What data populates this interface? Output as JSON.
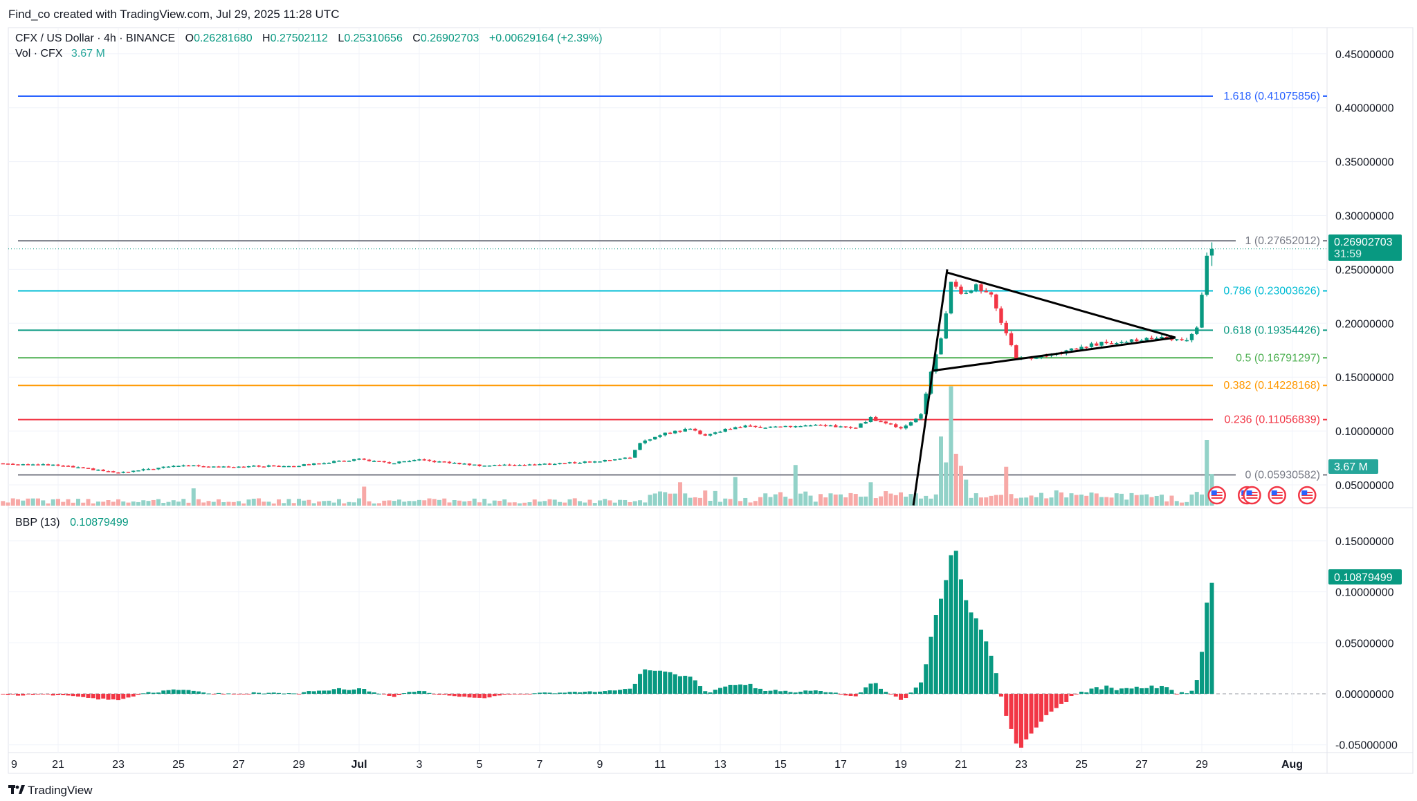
{
  "header": {
    "attribution": "Find_co created with TradingView.com, Jul 29, 2025 11:28 UTC"
  },
  "legend": {
    "symbol": "CFX / US Dollar · 4h · BINANCE",
    "o_label": "O",
    "o": "0.26281680",
    "h_label": "H",
    "h": "0.27502112",
    "l_label": "L",
    "l": "0.25310656",
    "c_label": "C",
    "c": "0.26902703",
    "change": "+0.00629164 (+2.39%)",
    "vol_label": "Vol · CFX",
    "vol": "3.67 M"
  },
  "indicator": {
    "label": "BBP (13)",
    "value": "0.10879499"
  },
  "price_badge": {
    "price": "0.26902703",
    "countdown": "31:59"
  },
  "volume_badge": "3.67 M",
  "bbp_badge": "0.10879499",
  "logo_text": "TradingView",
  "colors": {
    "up": "#089981",
    "down": "#f23645",
    "up_volume": "#92d2c8",
    "down_volume": "#f7a9a7",
    "grid": "#f0f3fa",
    "text": "#131722"
  },
  "icons": {
    "event": "us-flag-icon",
    "logo": "tradingview-logo-icon"
  },
  "chart_data": {
    "type": "candlestick",
    "symbol": "CFX/USD",
    "interval": "4h",
    "price_axis": {
      "ticks": [
        "0.45000000",
        "0.40000000",
        "0.35000000",
        "0.30000000",
        "0.25000000",
        "0.20000000",
        "0.15000000",
        "0.10000000",
        "0.05000000"
      ],
      "range": [
        0.03,
        0.47
      ]
    },
    "bbp_axis": {
      "ticks": [
        "0.15000000",
        "0.10000000",
        "0.05000000",
        "0.00000000",
        "-0.05000000"
      ],
      "range": [
        -0.065,
        0.175
      ]
    },
    "time_axis": [
      {
        "label": "9",
        "date": "2025-06-19"
      },
      {
        "label": "21",
        "date": "2025-06-21"
      },
      {
        "label": "23",
        "date": "2025-06-23"
      },
      {
        "label": "25",
        "date": "2025-06-25"
      },
      {
        "label": "27",
        "date": "2025-06-27"
      },
      {
        "label": "29",
        "date": "2025-06-29"
      },
      {
        "label": "Jul",
        "date": "2025-07-01",
        "bold": true
      },
      {
        "label": "3",
        "date": "2025-07-03"
      },
      {
        "label": "5",
        "date": "2025-07-05"
      },
      {
        "label": "7",
        "date": "2025-07-07"
      },
      {
        "label": "9",
        "date": "2025-07-09"
      },
      {
        "label": "11",
        "date": "2025-07-11"
      },
      {
        "label": "13",
        "date": "2025-07-13"
      },
      {
        "label": "15",
        "date": "2025-07-15"
      },
      {
        "label": "17",
        "date": "2025-07-17"
      },
      {
        "label": "19",
        "date": "2025-07-19"
      },
      {
        "label": "21",
        "date": "2025-07-21"
      },
      {
        "label": "23",
        "date": "2025-07-23"
      },
      {
        "label": "25",
        "date": "2025-07-25"
      },
      {
        "label": "27",
        "date": "2025-07-27"
      },
      {
        "label": "29",
        "date": "2025-07-29"
      },
      {
        "label": "Aug",
        "date": "2025-08-01",
        "bold": true
      }
    ],
    "close_path": [
      [
        "2025-06-19T00:00",
        0.07
      ],
      [
        "2025-06-21T00:00",
        0.068
      ],
      [
        "2025-06-22T12:00",
        0.063
      ],
      [
        "2025-06-23T00:00",
        0.061
      ],
      [
        "2025-06-25T00:00",
        0.068
      ],
      [
        "2025-06-27T00:00",
        0.067
      ],
      [
        "2025-06-29T00:00",
        0.068
      ],
      [
        "2025-07-01T00:00",
        0.074
      ],
      [
        "2025-07-02T00:00",
        0.07
      ],
      [
        "2025-07-03T00:00",
        0.073
      ],
      [
        "2025-07-05T00:00",
        0.068
      ],
      [
        "2025-07-07T00:00",
        0.069
      ],
      [
        "2025-07-09T00:00",
        0.072
      ],
      [
        "2025-07-10T00:00",
        0.076
      ],
      [
        "2025-07-10T08:00",
        0.088
      ],
      [
        "2025-07-11T00:00",
        0.097
      ],
      [
        "2025-07-12T00:00",
        0.102
      ],
      [
        "2025-07-12T12:00",
        0.096
      ],
      [
        "2025-07-13T12:00",
        0.104
      ],
      [
        "2025-07-15T00:00",
        0.104
      ],
      [
        "2025-07-16T00:00",
        0.105
      ],
      [
        "2025-07-17T00:00",
        0.104
      ],
      [
        "2025-07-17T12:00",
        0.103
      ],
      [
        "2025-07-18T00:00",
        0.112
      ],
      [
        "2025-07-18T12:00",
        0.107
      ],
      [
        "2025-07-19T00:00",
        0.103
      ],
      [
        "2025-07-19T16:00",
        0.115
      ],
      [
        "2025-07-20T00:00",
        0.155
      ],
      [
        "2025-07-20T08:00",
        0.185
      ],
      [
        "2025-07-20T12:00",
        0.21
      ],
      [
        "2025-07-20T16:00",
        0.24
      ],
      [
        "2025-07-21T00:00",
        0.225
      ],
      [
        "2025-07-21T12:00",
        0.235
      ],
      [
        "2025-07-22T00:00",
        0.225
      ],
      [
        "2025-07-22T12:00",
        0.19
      ],
      [
        "2025-07-22T20:00",
        0.168
      ],
      [
        "2025-07-23T12:00",
        0.168
      ],
      [
        "2025-07-24T00:00",
        0.17
      ],
      [
        "2025-07-25T00:00",
        0.178
      ],
      [
        "2025-07-26T00:00",
        0.183
      ],
      [
        "2025-07-27T00:00",
        0.185
      ],
      [
        "2025-07-28T00:00",
        0.186
      ],
      [
        "2025-07-28T12:00",
        0.184
      ],
      [
        "2025-07-28T20:00",
        0.195
      ],
      [
        "2025-07-29T04:00",
        0.262
      ],
      [
        "2025-07-29T08:00",
        0.269
      ]
    ],
    "volume_spikes_m": [
      [
        "2025-06-25T12:00",
        2.0
      ],
      [
        "2025-07-01T04:00",
        2.2
      ],
      [
        "2025-07-11T16:00",
        2.7
      ],
      [
        "2025-07-13T12:00",
        3.3
      ],
      [
        "2025-07-15T12:00",
        4.7
      ],
      [
        "2025-07-18T00:00",
        2.7
      ],
      [
        "2025-07-20T08:00",
        8.0
      ],
      [
        "2025-07-20T12:00",
        5.0
      ],
      [
        "2025-07-20T16:00",
        13.8
      ],
      [
        "2025-07-20T20:00",
        6.0
      ],
      [
        "2025-07-21T00:00",
        4.6
      ],
      [
        "2025-07-21T04:00",
        3.0
      ],
      [
        "2025-07-22T12:00",
        4.5
      ],
      [
        "2025-07-29T04:00",
        7.6
      ],
      [
        "2025-07-29T08:00",
        3.67
      ]
    ],
    "fib_levels": [
      {
        "level": "1.618",
        "price": 0.41075856,
        "label": "1.618 (0.41075856)",
        "color": "#2962ff"
      },
      {
        "level": "1",
        "price": 0.27652012,
        "label": "1 (0.27652012)",
        "color": "#787b86"
      },
      {
        "level": "0.786",
        "price": 0.23003626,
        "label": "0.786 (0.23003626)",
        "color": "#00bcd4"
      },
      {
        "level": "0.618",
        "price": 0.19354426,
        "label": "0.618 (0.19354426)",
        "color": "#089981"
      },
      {
        "level": "0.5",
        "price": 0.16791297,
        "label": "0.5 (0.16791297)",
        "color": "#4caf50"
      },
      {
        "level": "0.382",
        "price": 0.14228168,
        "label": "0.382 (0.14228168)",
        "color": "#ff9800"
      },
      {
        "level": "0.236",
        "price": 0.11056839,
        "label": "0.236 (0.11056839)",
        "color": "#f23645"
      },
      {
        "level": "0",
        "price": 0.05930582,
        "label": "0 (0.05930582)",
        "color": "#787b86"
      }
    ],
    "trendlines": [
      [
        [
          "2025-07-19T10:00",
          0.031
        ],
        [
          "2025-07-20T13:00",
          0.25
        ]
      ],
      [
        [
          "2025-07-20T13:00",
          0.247
        ],
        [
          "2025-07-28T03:00",
          0.1867
        ]
      ],
      [
        [
          "2025-07-20T01:30",
          0.156
        ],
        [
          "2025-07-28T03:00",
          0.1867
        ]
      ]
    ],
    "events": [
      "2025-07-29T12:00",
      "2025-07-30T12:00",
      "2025-07-30T16:00",
      "2025-07-31T12:00",
      "2025-08-01T12:00"
    ],
    "last_price": 0.26902703,
    "bbp_period": 13
  }
}
